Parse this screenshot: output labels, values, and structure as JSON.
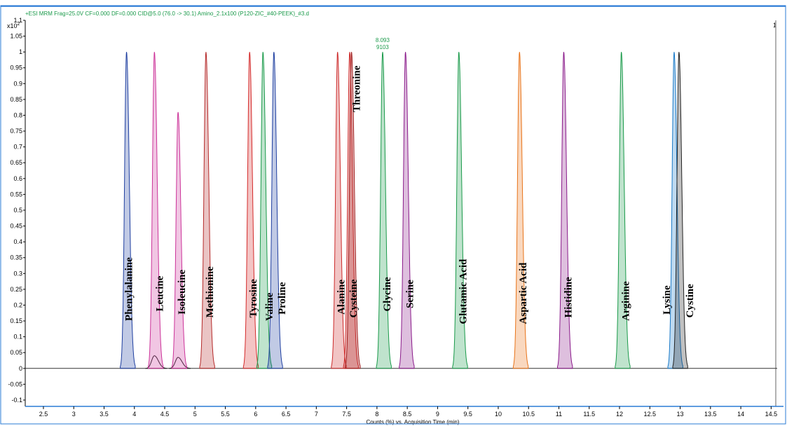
{
  "chart_data": {
    "type": "area",
    "header": "+ESI MRM Frag=25.0V CF=0.000 DF=0.000 CID@5.0 (76.0 -> 30.1) Amino_2.1x100 (P120-ZIC_#40-PEEK)_#3.d",
    "xlabel": "Counts (%) vs. Acquisition Time (min)",
    "y_exponent_base": "x10",
    "y_exponent_power": "2",
    "cursor_label": "1",
    "xlim": [
      2.2,
      14.6
    ],
    "ylim": [
      -0.12,
      1.1
    ],
    "x_ticks": [
      "2.5",
      "3",
      "3.5",
      "4",
      "4.5",
      "5",
      "5.5",
      "6",
      "6.5",
      "7",
      "7.5",
      "8",
      "8.5",
      "9",
      "9.5",
      "10",
      "10.5",
      "11",
      "11.5",
      "12",
      "12.5",
      "13",
      "13.5",
      "14",
      "14.5"
    ],
    "y_ticks": [
      "-0.1",
      "-0.05",
      "0",
      "0.05",
      "0.1",
      "0.15",
      "0.2",
      "0.25",
      "0.3",
      "0.35",
      "0.4",
      "0.45",
      "0.5",
      "0.55",
      "0.6",
      "0.65",
      "0.7",
      "0.75",
      "0.8",
      "0.85",
      "0.9",
      "0.95",
      "1",
      "1.05",
      "1.1"
    ],
    "annotation": {
      "lines": [
        "8.093",
        "9103"
      ],
      "x": 8.093,
      "y": 1.0
    },
    "series": [
      {
        "name": "Phenylalanine",
        "x": 3.87,
        "y": 1.0,
        "color": "#1f3fa0"
      },
      {
        "name": "Leucine",
        "x": 4.33,
        "y": 1.0,
        "color": "#cc3399"
      },
      {
        "name": "Isoleucine",
        "x": 4.72,
        "y": 0.81,
        "color": "#cc3399"
      },
      {
        "name": "Methionine",
        "x": 5.18,
        "y": 1.0,
        "color": "#b52a2a"
      },
      {
        "name": "Tyrosine",
        "x": 5.9,
        "y": 1.0,
        "color": "#d42a2a"
      },
      {
        "name": "Valine",
        "x": 6.12,
        "y": 1.0,
        "color": "#1a9a4a"
      },
      {
        "name": "Proline",
        "x": 6.3,
        "y": 1.0,
        "color": "#1f3fa0"
      },
      {
        "name": "Alanine",
        "x": 7.35,
        "y": 1.0,
        "color": "#cc2a2a"
      },
      {
        "name": "Cysteine",
        "x": 7.55,
        "y": 1.0,
        "color": "#cc2a2a"
      },
      {
        "name": "Threonine",
        "x": 7.58,
        "y": 1.0,
        "color": "#a01a1a"
      },
      {
        "name": "Glycine",
        "x": 8.093,
        "y": 1.0,
        "color": "#1a9a4a"
      },
      {
        "name": "Serine",
        "x": 8.47,
        "y": 1.0,
        "color": "#8a1a8a"
      },
      {
        "name": "Glutamic Acid",
        "x": 9.35,
        "y": 1.0,
        "color": "#1a9a4a"
      },
      {
        "name": "Aspartic Acid",
        "x": 10.35,
        "y": 1.0,
        "color": "#e8741a"
      },
      {
        "name": "Histidine",
        "x": 11.08,
        "y": 1.0,
        "color": "#8a1a8a"
      },
      {
        "name": "Arginine",
        "x": 12.03,
        "y": 1.0,
        "color": "#1a9a4a"
      },
      {
        "name": "Lysine",
        "x": 12.9,
        "y": 1.0,
        "color": "#1a7ac8"
      },
      {
        "name": "Cystine",
        "x": 12.98,
        "y": 1.0,
        "color": "#222222"
      }
    ],
    "minor_peaks": [
      {
        "x": 4.33,
        "y": 0.04,
        "color": "#222222"
      },
      {
        "x": 4.72,
        "y": 0.035,
        "color": "#222222"
      }
    ]
  }
}
